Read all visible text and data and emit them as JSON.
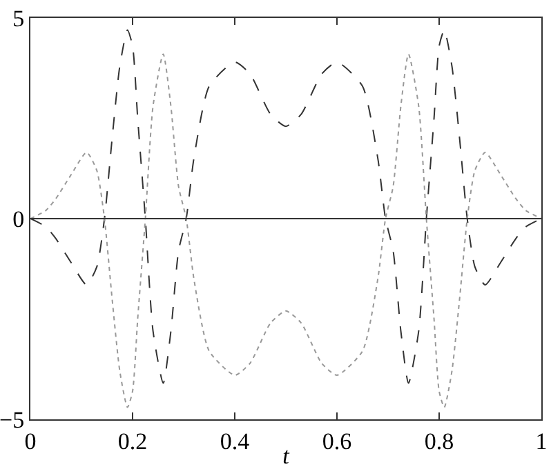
{
  "chart_data": {
    "type": "line",
    "xlabel": "t",
    "x": [
      0,
      0.03,
      0.05,
      0.08,
      0.11,
      0.13,
      0.145,
      0.16,
      0.175,
      0.19,
      0.2,
      0.21,
      0.225,
      0.24,
      0.26,
      0.275,
      0.29,
      0.305,
      0.32,
      0.35,
      0.4,
      0.43,
      0.47,
      0.5,
      0.53,
      0.57,
      0.6,
      0.65,
      0.68,
      0.695,
      0.71,
      0.725,
      0.74,
      0.76,
      0.775,
      0.79,
      0.8,
      0.81,
      0.825,
      0.84,
      0.855,
      0.87,
      0.89,
      0.92,
      0.95,
      0.97,
      1
    ],
    "series": [
      {
        "color": "#333333",
        "line_style": "dashed",
        "values": [
          0,
          -0.2,
          -0.5,
          -1.1,
          -1.65,
          -1.2,
          0,
          2,
          3.8,
          4.7,
          4.3,
          2.5,
          0,
          -2.8,
          -4.1,
          -2.8,
          -0.8,
          0,
          1.5,
          3.3,
          3.9,
          3.6,
          2.6,
          2.3,
          2.6,
          3.6,
          3.9,
          3.3,
          1.5,
          0,
          -0.8,
          -2.8,
          -4.1,
          -2.8,
          0,
          2.5,
          4.3,
          4.7,
          3.8,
          2,
          0,
          -1.2,
          -1.65,
          -1.1,
          -0.5,
          -0.2,
          0
        ]
      },
      {
        "color": "#999999",
        "line_style": "dotted",
        "values": [
          0,
          0.2,
          0.5,
          1.1,
          1.65,
          1.2,
          0,
          -2,
          -3.8,
          -4.7,
          -4.3,
          -2.5,
          0,
          2.8,
          4.1,
          2.8,
          0.8,
          0,
          -1.5,
          -3.3,
          -3.9,
          -3.6,
          -2.6,
          -2.3,
          -2.6,
          -3.6,
          -3.9,
          -3.3,
          -1.5,
          0,
          0.8,
          2.8,
          4.1,
          2.8,
          0,
          -2.5,
          -4.3,
          -4.7,
          -3.8,
          -2,
          0,
          1.2,
          1.65,
          1.1,
          0.5,
          0.2,
          0
        ]
      }
    ],
    "xlim": [
      0,
      1
    ],
    "xticks": [
      0,
      0.2,
      0.4,
      0.6,
      0.8,
      1
    ],
    "ylim": [
      -5,
      5
    ],
    "yticks": [
      -5,
      0,
      5
    ],
    "ref_lines": [
      {
        "axis": "y",
        "value": 0,
        "color": "#333333"
      }
    ],
    "grid": false,
    "marker": "none"
  }
}
